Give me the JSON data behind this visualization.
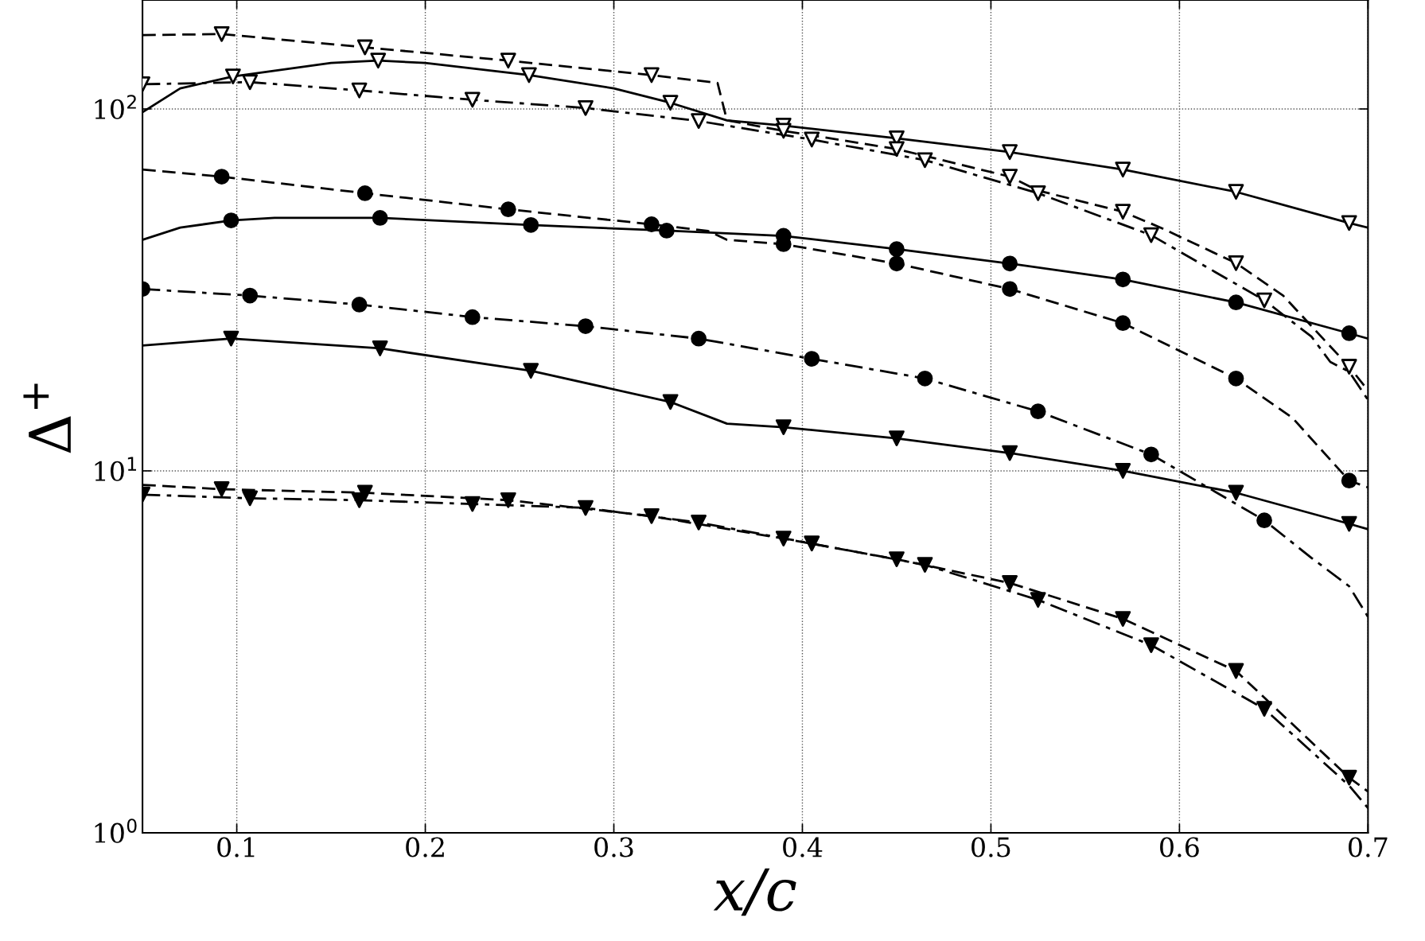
{
  "chart_data": {
    "type": "line",
    "xlabel": "x/c",
    "ylabel": "Δ$^{+}$",
    "log": "y",
    "grid": true,
    "legend": false,
    "xlim": [
      0.05,
      0.7
    ],
    "ylim": [
      1,
      200
    ],
    "xticks": [
      0.1,
      0.2,
      0.3,
      0.4,
      0.5,
      0.6,
      0.7
    ],
    "yticks": [
      {
        "value": 1,
        "label": "10$^{0}$"
      },
      {
        "value": 10,
        "label": "10$^{1}$"
      },
      {
        "value": 100,
        "label": "10$^{2}$"
      }
    ],
    "series": [
      {
        "type": "line",
        "line_style": "solid",
        "marker": "none",
        "color": "#000000",
        "x": [
          0.05,
          0.07,
          0.098,
          0.15,
          0.175,
          0.2,
          0.255,
          0.3,
          0.33,
          0.36,
          0.39,
          0.45,
          0.51,
          0.57,
          0.63,
          0.69,
          0.7
        ],
        "values": [
          98,
          114,
          123,
          134,
          136,
          134,
          124,
          114,
          104,
          93,
          90,
          83,
          76,
          68,
          59,
          48.4,
          47
        ]
      },
      {
        "type": "scatter",
        "marker": "triangle_down_open",
        "color": "#000000",
        "x": [
          0.098,
          0.175,
          0.255,
          0.33,
          0.39,
          0.45,
          0.51,
          0.57,
          0.63,
          0.69
        ],
        "values": [
          123,
          136,
          124,
          104,
          90,
          83,
          76,
          68,
          59,
          48.4
        ]
      },
      {
        "type": "line",
        "line_style": "dashed",
        "marker": "none",
        "color": "#000000",
        "x": [
          0.05,
          0.092,
          0.168,
          0.244,
          0.32,
          0.355,
          0.36,
          0.39,
          0.45,
          0.51,
          0.525,
          0.57,
          0.59,
          0.63,
          0.655,
          0.69,
          0.7
        ],
        "values": [
          160,
          161,
          148,
          136,
          124,
          118,
          93,
          87,
          77.5,
          65,
          59.5,
          52,
          47,
          37.5,
          30.5,
          19.4,
          16.7
        ]
      },
      {
        "type": "scatter",
        "marker": "triangle_down_open",
        "color": "#000000",
        "x": [
          0.092,
          0.168,
          0.244,
          0.32,
          0.39,
          0.45,
          0.51,
          0.57,
          0.63,
          0.69
        ],
        "values": [
          161,
          148,
          136,
          124,
          87,
          77.5,
          65,
          52,
          37.5,
          19.4
        ]
      },
      {
        "type": "line",
        "line_style": "dashdot",
        "marker": "none",
        "color": "#000000",
        "x": [
          0.05,
          0.107,
          0.165,
          0.225,
          0.285,
          0.345,
          0.405,
          0.465,
          0.525,
          0.585,
          0.645,
          0.67,
          0.68,
          0.69,
          0.7
        ],
        "values": [
          117,
          118.6,
          112.5,
          106,
          100.6,
          92.6,
          82.3,
          72.2,
          58.5,
          44.8,
          29.6,
          23.5,
          20,
          18.8,
          15.7
        ]
      },
      {
        "type": "scatter",
        "marker": "triangle_down_open",
        "color": "#000000",
        "x": [
          0.05,
          0.107,
          0.165,
          0.225,
          0.285,
          0.345,
          0.405,
          0.465,
          0.525,
          0.585,
          0.645
        ],
        "values": [
          117,
          118.6,
          112.5,
          106,
          100.6,
          92.6,
          82.3,
          72.2,
          58.5,
          44.8,
          29.6
        ]
      },
      {
        "type": "line",
        "line_style": "solid",
        "marker": "none",
        "color": "#000000",
        "x": [
          0.05,
          0.07,
          0.097,
          0.12,
          0.176,
          0.256,
          0.328,
          0.39,
          0.45,
          0.51,
          0.57,
          0.63,
          0.69,
          0.7
        ],
        "values": [
          43.5,
          47,
          49.2,
          50,
          50,
          47.8,
          46.1,
          44.6,
          41,
          37.4,
          33.8,
          29.2,
          24,
          23.2
        ]
      },
      {
        "type": "scatter",
        "marker": "circle",
        "color": "#000000",
        "x": [
          0.097,
          0.176,
          0.256,
          0.328,
          0.39,
          0.45,
          0.51,
          0.57,
          0.63,
          0.69
        ],
        "values": [
          49.2,
          50,
          47.8,
          46.1,
          44.6,
          41,
          37.4,
          33.8,
          29.2,
          24
        ]
      },
      {
        "type": "line",
        "line_style": "dashed",
        "marker": "none",
        "color": "#000000",
        "x": [
          0.05,
          0.092,
          0.168,
          0.244,
          0.32,
          0.35,
          0.36,
          0.39,
          0.45,
          0.51,
          0.57,
          0.63,
          0.66,
          0.69,
          0.7
        ],
        "values": [
          68,
          65,
          58.5,
          52.8,
          48,
          46,
          43.5,
          42.3,
          37.4,
          31.8,
          25.6,
          18,
          14,
          9.4,
          9
        ]
      },
      {
        "type": "scatter",
        "marker": "circle",
        "color": "#000000",
        "x": [
          0.092,
          0.168,
          0.244,
          0.32,
          0.39,
          0.45,
          0.51,
          0.57,
          0.63,
          0.69
        ],
        "values": [
          65,
          58.5,
          52.8,
          48,
          42.3,
          37.4,
          31.8,
          25.6,
          18,
          9.4
        ]
      },
      {
        "type": "line",
        "line_style": "dashdot",
        "marker": "none",
        "color": "#000000",
        "x": [
          0.05,
          0.107,
          0.165,
          0.225,
          0.285,
          0.345,
          0.405,
          0.465,
          0.525,
          0.585,
          0.645,
          0.67,
          0.69,
          0.7
        ],
        "values": [
          31.8,
          30.5,
          28.8,
          26.6,
          25.1,
          23.2,
          20.4,
          18,
          14.6,
          11.1,
          7.3,
          5.75,
          4.8,
          3.95
        ]
      },
      {
        "type": "scatter",
        "marker": "circle",
        "color": "#000000",
        "x": [
          0.05,
          0.107,
          0.165,
          0.225,
          0.285,
          0.345,
          0.405,
          0.465,
          0.525,
          0.585,
          0.645
        ],
        "values": [
          31.8,
          30.5,
          28.8,
          26.6,
          25.1,
          23.2,
          20.4,
          18,
          14.6,
          11.1,
          7.3
        ]
      },
      {
        "type": "line",
        "line_style": "solid",
        "marker": "none",
        "color": "#000000",
        "x": [
          0.05,
          0.097,
          0.176,
          0.256,
          0.33,
          0.36,
          0.39,
          0.45,
          0.51,
          0.57,
          0.63,
          0.69,
          0.7
        ],
        "values": [
          22.2,
          23.2,
          21.8,
          18.9,
          15.5,
          13.5,
          13.2,
          12.3,
          11.2,
          10,
          8.7,
          7.14,
          6.9
        ]
      },
      {
        "type": "scatter",
        "marker": "triangle_down",
        "color": "#000000",
        "x": [
          0.097,
          0.176,
          0.256,
          0.33,
          0.39,
          0.45,
          0.51,
          0.57,
          0.63,
          0.69
        ],
        "values": [
          23.2,
          21.8,
          18.9,
          15.5,
          13.2,
          12.3,
          11.2,
          10,
          8.7,
          7.14
        ]
      },
      {
        "type": "line",
        "line_style": "dashed",
        "marker": "none",
        "color": "#000000",
        "x": [
          0.05,
          0.092,
          0.168,
          0.244,
          0.32,
          0.39,
          0.45,
          0.51,
          0.57,
          0.63,
          0.69,
          0.7
        ],
        "values": [
          9.15,
          8.9,
          8.7,
          8.3,
          7.5,
          6.5,
          5.7,
          4.9,
          3.9,
          2.8,
          1.42,
          1.3
        ]
      },
      {
        "type": "scatter",
        "marker": "triangle_down",
        "color": "#000000",
        "x": [
          0.092,
          0.168,
          0.244,
          0.32,
          0.39,
          0.45,
          0.51,
          0.57,
          0.63,
          0.69
        ],
        "values": [
          8.9,
          8.7,
          8.3,
          7.5,
          6.5,
          5.7,
          4.9,
          3.9,
          2.8,
          1.42
        ]
      },
      {
        "type": "line",
        "line_style": "dashdot",
        "marker": "none",
        "color": "#000000",
        "x": [
          0.05,
          0.107,
          0.165,
          0.225,
          0.285,
          0.345,
          0.405,
          0.465,
          0.525,
          0.585,
          0.645,
          0.69,
          0.7
        ],
        "values": [
          8.6,
          8.4,
          8.3,
          8.1,
          7.9,
          7.2,
          6.3,
          5.5,
          4.4,
          3.3,
          2.2,
          1.35,
          1.17
        ]
      },
      {
        "type": "scatter",
        "marker": "triangle_down",
        "color": "#000000",
        "x": [
          0.05,
          0.107,
          0.165,
          0.225,
          0.285,
          0.345,
          0.405,
          0.465,
          0.525,
          0.585,
          0.645
        ],
        "values": [
          8.6,
          8.4,
          8.3,
          8.1,
          7.9,
          7.2,
          6.3,
          5.5,
          4.4,
          3.3,
          2.2
        ]
      }
    ]
  }
}
